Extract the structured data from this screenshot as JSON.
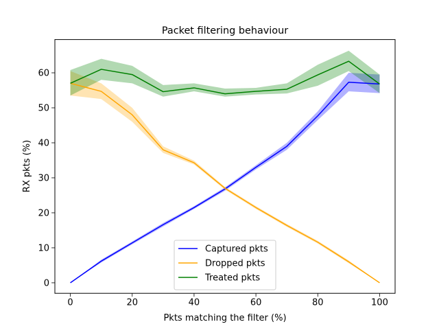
{
  "chart_data": {
    "type": "line",
    "title": "Packet filtering behaviour",
    "xlabel": "Pkts matching the filter (%)",
    "ylabel": "RX pkts (%)",
    "xlim": [
      -5,
      105
    ],
    "ylim": [
      -3,
      69.5
    ],
    "xticks": [
      0,
      20,
      40,
      60,
      80,
      100
    ],
    "yticks": [
      0,
      10,
      20,
      30,
      40,
      50,
      60
    ],
    "grid": false,
    "legend_position": "bottom-center",
    "x": [
      0,
      10,
      20,
      30,
      40,
      50,
      60,
      70,
      80,
      90,
      100
    ],
    "series": [
      {
        "name": "Captured pkts",
        "color": "#0000ff",
        "values": [
          0,
          6.2,
          11.4,
          16.6,
          21.5,
          26.8,
          33.0,
          39.0,
          47.7,
          57.3,
          56.8
        ],
        "lower": [
          0,
          5.8,
          11.0,
          16.1,
          21.1,
          26.3,
          32.4,
          38.0,
          46.5,
          54.7,
          54.2
        ],
        "upper": [
          0,
          6.6,
          11.8,
          17.1,
          21.9,
          27.3,
          33.6,
          40.0,
          49.0,
          60.0,
          59.5
        ]
      },
      {
        "name": "Dropped pkts",
        "color": "#ffa500",
        "values": [
          57.0,
          54.7,
          48.0,
          38.0,
          34.3,
          27.0,
          21.5,
          16.4,
          11.6,
          6.0,
          0
        ],
        "lower": [
          53.5,
          52.5,
          46.0,
          37.1,
          33.8,
          26.6,
          21.1,
          16.0,
          11.2,
          5.6,
          0
        ],
        "upper": [
          60.5,
          57.0,
          50.0,
          39.0,
          34.9,
          27.4,
          21.9,
          16.8,
          12.0,
          6.4,
          0
        ]
      },
      {
        "name": "Treated pkts",
        "color": "#008000",
        "values": [
          57.0,
          61.0,
          59.5,
          54.6,
          55.7,
          54.0,
          54.7,
          55.3,
          59.4,
          63.3,
          56.8
        ],
        "lower": [
          53.5,
          58.0,
          57.0,
          53.2,
          54.7,
          53.2,
          53.8,
          54.1,
          56.3,
          60.5,
          54.2
        ],
        "upper": [
          60.8,
          64.0,
          62.0,
          56.5,
          57.0,
          55.5,
          55.7,
          57.0,
          62.3,
          66.3,
          59.5
        ]
      }
    ]
  }
}
